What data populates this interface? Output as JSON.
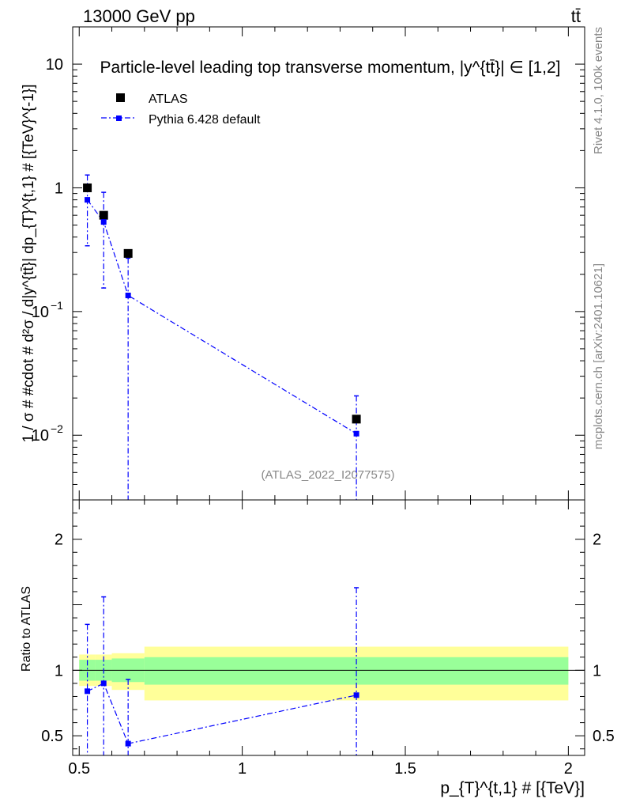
{
  "header": {
    "left": "13000 GeV pp",
    "right": "tt̄"
  },
  "side_labels": {
    "rivet": "Rivet 4.1.0,  100k events",
    "mcplots": "mcplots.cern.ch [arXiv:2401.10621]"
  },
  "chart_data": {
    "type": "scatter",
    "title": "Particle-level leading top transverse momentum, |y^{tt̄}| ∈ [1,2]",
    "watermark": "(ATLAS_2022_I2077575)",
    "xlabel": "p_{T}^{t,1} # [{TeV}]",
    "ylabel": "1 / σ # #cdot # d²σ / d|y^{tt̄}| dp_{T}^{t,1} # [{TeV}^{-1}]",
    "ratio_ylabel": "Ratio to ATLAS",
    "xlim": [
      0.48,
      2.05
    ],
    "ylim_main": [
      0.003,
      20
    ],
    "ylim_ratio": [
      0.35,
      2.3
    ],
    "x_ticks": [
      0.5,
      1,
      1.5,
      2
    ],
    "x_tick_labels": [
      "0.5",
      "1",
      "1.5",
      "2"
    ],
    "main_y_tick_labels": [
      {
        "value": 10,
        "label": "10"
      },
      {
        "value": 1,
        "label": "1"
      },
      {
        "value": 0.1,
        "label": "10",
        "exp": "−1"
      },
      {
        "value": 0.01,
        "label": "10",
        "exp": "−2"
      }
    ],
    "ratio_y_tick_labels": [
      {
        "value": 2,
        "label": "2"
      },
      {
        "value": 1,
        "label": "1"
      },
      {
        "value": 0.5,
        "label": "0.5"
      }
    ],
    "legend": {
      "position": "top-left",
      "entries": [
        "ATLAS",
        "Pythia 6.428 default"
      ]
    },
    "series": [
      {
        "name": "ATLAS",
        "color": "#000000",
        "marker": "square",
        "points": [
          {
            "x": 0.525,
            "y": 1.0
          },
          {
            "x": 0.575,
            "y": 0.6
          },
          {
            "x": 0.65,
            "y": 0.295
          },
          {
            "x": 1.35,
            "y": 0.0135
          }
        ],
        "bins": [
          {
            "xlo": 0.5,
            "xhi": 0.55,
            "stat": [
              0.92,
              1.08
            ],
            "total": [
              0.88,
              1.12
            ]
          },
          {
            "xlo": 0.55,
            "xhi": 0.6,
            "stat": [
              0.92,
              1.08
            ],
            "total": [
              0.88,
              1.12
            ]
          },
          {
            "xlo": 0.6,
            "xhi": 0.7,
            "stat": [
              0.91,
              1.09
            ],
            "total": [
              0.85,
              1.13
            ]
          },
          {
            "xlo": 0.7,
            "xhi": 2.0,
            "stat": [
              0.89,
              1.1
            ],
            "total": [
              0.77,
              1.18
            ]
          }
        ]
      },
      {
        "name": "Pythia 6.428 default",
        "color": "#0000ff",
        "marker": "square",
        "line": "dash-dot",
        "points": [
          {
            "x": 0.525,
            "y": 0.8,
            "ylo": 0.34,
            "yhi": 1.27,
            "ratio": 0.84,
            "rlo": 0.34,
            "rhi": 1.35
          },
          {
            "x": 0.575,
            "y": 0.53,
            "ylo": 0.155,
            "yhi": 0.92,
            "ratio": 0.9,
            "rlo": 0.26,
            "rhi": 1.56
          },
          {
            "x": 0.65,
            "y": 0.135,
            "ylo": 0.0001,
            "yhi": 0.27,
            "ratio": 0.44,
            "rlo": 0.0,
            "rhi": 0.93
          },
          {
            "x": 1.35,
            "y": 0.0103,
            "ylo": 0.0001,
            "yhi": 0.0208,
            "ratio": 0.81,
            "rlo": 0.0,
            "rhi": 1.63
          }
        ]
      }
    ]
  }
}
